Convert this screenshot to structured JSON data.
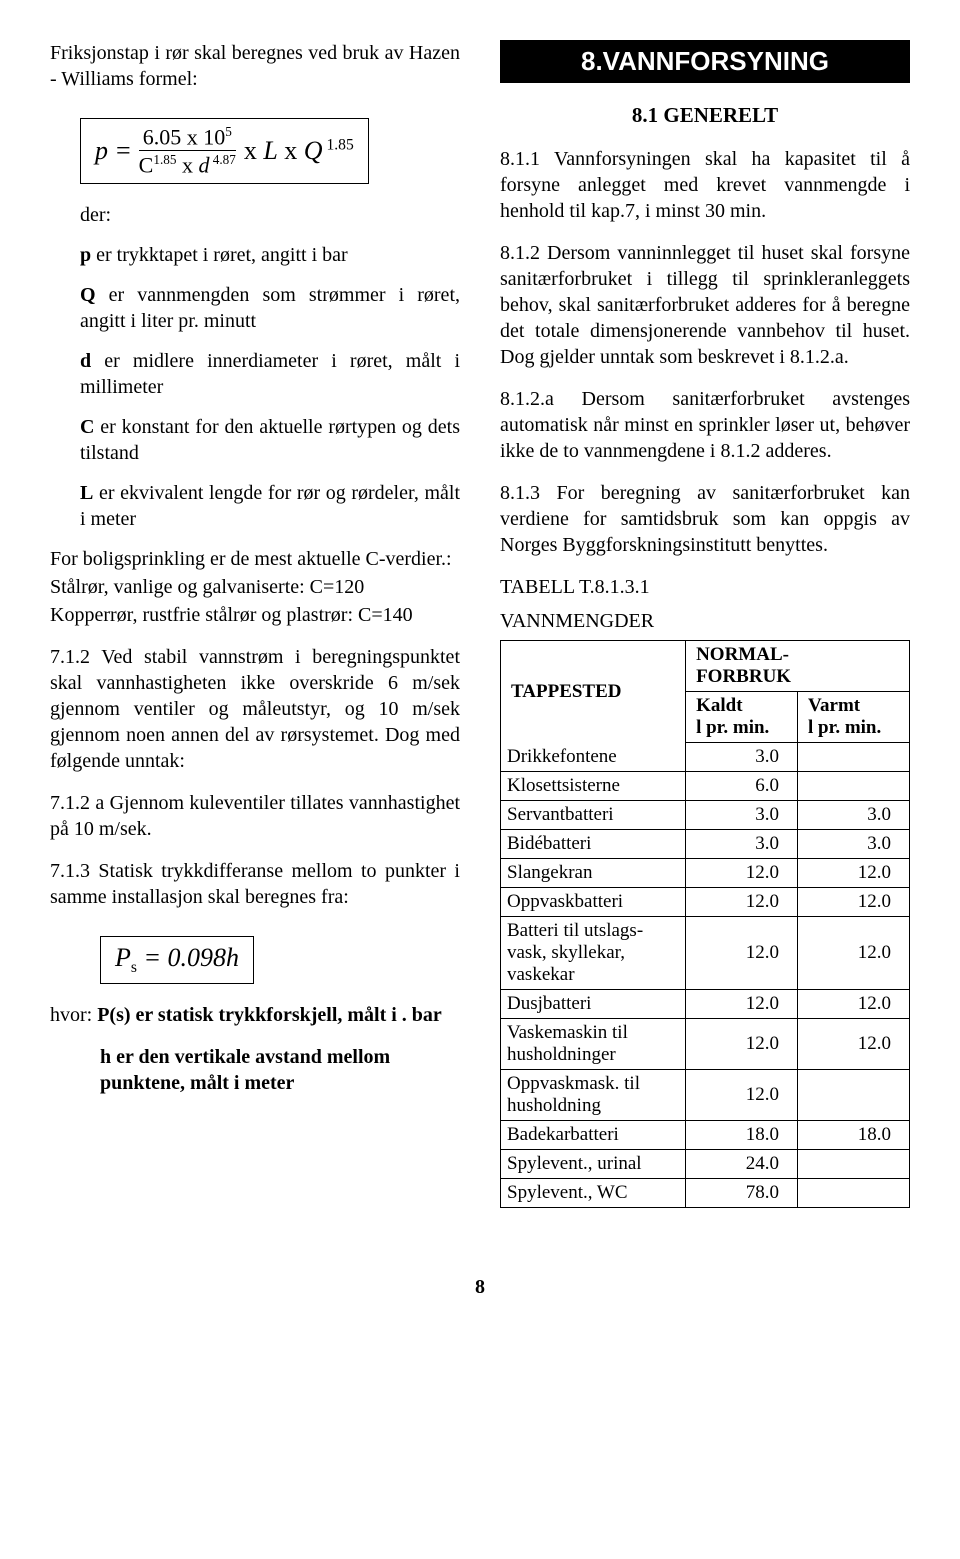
{
  "page_number": "8",
  "left": {
    "intro": "Friksjonstap i rør skal beregnes ved bruk av Hazen - Williams formel:",
    "formula1": {
      "p": "p",
      "eq": "=",
      "num": "6.05 x 10",
      "num_sup": "5",
      "den_c": "C",
      "den_c_sup": "1.85",
      "den_x": " x ",
      "den_d": "d",
      "den_d_sup": " 4.87",
      "tail_xL": " x ",
      "tail_L": "L",
      "tail_xQ": " x ",
      "tail_Q": "Q",
      "tail_Q_sup": " 1.85"
    },
    "der_label": "der:",
    "defs": [
      {
        "sym": "p",
        "text": " er trykktapet i røret, angitt i bar"
      },
      {
        "sym": "Q",
        "text": " er vannmengden som strømmer i røret, angitt i liter pr. minutt"
      },
      {
        "sym": "d",
        "text": " er midlere innerdiameter i røret, målt i millimeter"
      },
      {
        "sym": "C",
        "text": " er konstant for den aktuelle rør­typen og dets tilstand"
      },
      {
        "sym": "L",
        "text": " er ekvivalent lengde for rør og rørdeler, målt i meter"
      }
    ],
    "cverdier1": "For boligsprinkling er de mest aktuelle C-verdier.:",
    "cverdier2": "Stålrør, vanlige og galvaniserte: C=120",
    "cverdier3": "Kopperrør, rustfrie stålrør og plastrør: C=140",
    "p712": "7.1.2 Ved stabil vannstrøm i beregningspunktet skal vannhastigheten ikke overskride 6 m/sek gjennom ventiler og måleutstyr, og 10 m/sek gjennom noen annen del av rørsystemet. Dog med følgende unntak:",
    "p712a": "7.1.2 a Gjennom kuleventiler tillates vann­hastighet på 10 m/sek.",
    "p713": "7.1.3 Statisk trykkdifferanse mellom to punkter i samme installasjon skal beregnes fra:",
    "formula2": {
      "lhs_P": "P",
      "lhs_sub": "s",
      "rhs": " = 0.098h"
    },
    "hvor_lead": "hvor:  ",
    "hvor1": "P(s) er statisk trykkforskjell, målt i   .   bar",
    "hvor2": "h er den vertikale avstand mellom punktene, målt i meter"
  },
  "right": {
    "section_title": "8.VANNFORSYNING",
    "sub_title": "8.1 GENERELT",
    "p811": "8.1.1 Vannforsyningen skal ha kapasitet til å forsyne anlegget med krevet vannmengde i henhold til kap.7, i minst 30 min.",
    "p812": "8.1.2 Dersom vanninnlegget til huset skal forsyne sanitærforbruket i tillegg til sprinkleranleggets behov, skal sanitærforbruket adderes for å beregne det totale dimensjonerende vannbehov til huset. Dog gjelder unntak som beskrevet i 8.1.2.a.",
    "p812a": "8.1.2.a Dersom sanitærforbruket avstenges automatisk når minst en sprinkler løser ut, behøver ikke de to vannmengdene i 8.1.2 adderes.",
    "p813": "8.1.3 For beregning av sanitærforbruket kan verdiene for samtidsbruk som kan oppgis av Norges Byggforskningsinstitutt benyttes.",
    "table_caption1": "TABELL T.8.1.3.1",
    "table_caption2": "VANNMENGDER",
    "table": {
      "h_tappested": "TAPPESTED",
      "h_normal": "NORMAL-\nFORBRUK",
      "h_kaldt": "Kaldt\nl pr. min.",
      "h_varmt": "Varmt\nl pr. min.",
      "rows": [
        {
          "name": "Drikkefontene",
          "cold": "3.0",
          "hot": ""
        },
        {
          "name": "Klosettsisterne",
          "cold": "6.0",
          "hot": ""
        },
        {
          "name": "Servantbatteri",
          "cold": "3.0",
          "hot": "3.0"
        },
        {
          "name": "Bidébatteri",
          "cold": "3.0",
          "hot": "3.0"
        },
        {
          "name": "Slangekran",
          "cold": "12.0",
          "hot": "12.0"
        },
        {
          "name": "Oppvaskbatteri",
          "cold": "12.0",
          "hot": "12.0"
        },
        {
          "name": "Batteri til utslags-\nvask, skyllekar,\nvaskekar",
          "cold": "12.0",
          "hot": "12.0"
        },
        {
          "name": "Dusjbatteri",
          "cold": "12.0",
          "hot": "12.0"
        },
        {
          "name": "Vaskemaskin til\nhusholdninger",
          "cold": "12.0",
          "hot": "12.0"
        },
        {
          "name": "Oppvaskmask. til\nhusholdning",
          "cold": "12.0",
          "hot": ""
        },
        {
          "name": "Badekarbatteri",
          "cold": "18.0",
          "hot": "18.0"
        },
        {
          "name": "Spylevent., urinal",
          "cold": "24.0",
          "hot": ""
        },
        {
          "name": "Spylevent., WC",
          "cold": "78.0",
          "hot": ""
        }
      ]
    }
  }
}
